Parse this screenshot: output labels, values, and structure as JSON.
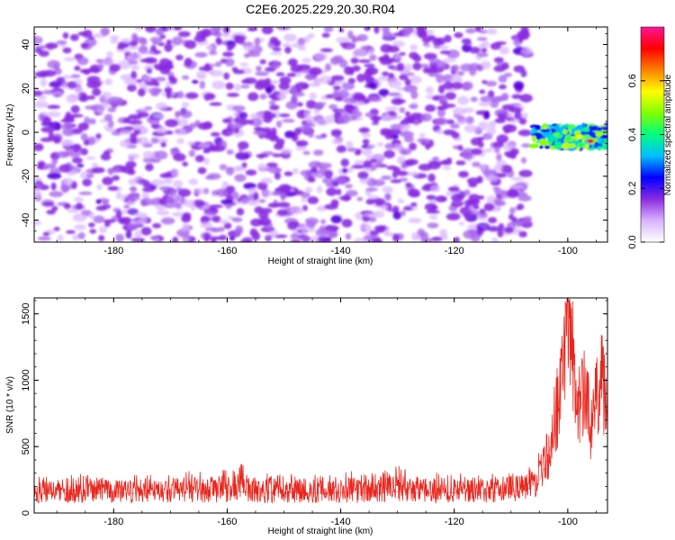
{
  "title": "C2E6.2025.229.20.30.R04",
  "chart_data": [
    {
      "type": "heatmap",
      "xlabel": "Height of straight line (km)",
      "ylabel": "Frequency (Hz)",
      "xlim": [
        -194,
        -93
      ],
      "ylim": [
        -50,
        48
      ],
      "x_ticks": [
        -180,
        -160,
        -140,
        -120,
        -100
      ],
      "y_ticks": [
        -40,
        -20,
        0,
        20,
        40
      ],
      "colorbar": {
        "label": "Normalized spectral amplitude",
        "range": [
          0,
          0.8
        ],
        "ticks": [
          0.0,
          0.2,
          0.4,
          0.6
        ],
        "colors": [
          "#ffffff",
          "#d9b3ff",
          "#8a2be2",
          "#0000ff",
          "#00bfff",
          "#00ff80",
          "#80ff00",
          "#ffff00",
          "#ff8000",
          "#ff0000",
          "#ff1493"
        ]
      },
      "noise_region": {
        "x_range": [
          -194,
          -107
        ],
        "amplitude_range": [
          0.0,
          0.15
        ],
        "dominant_color": "#8a2be2"
      },
      "signal_region": {
        "x_range": [
          -106,
          -93
        ],
        "frequency_center": -2,
        "frequency_halfwidth": 5,
        "amplitude_range": [
          0.2,
          0.75
        ]
      }
    },
    {
      "type": "line",
      "xlabel": "Height of straight line (km)",
      "ylabel": "SNR (10 * v/v)",
      "xlim": [
        -194,
        -93
      ],
      "ylim": [
        0,
        1620
      ],
      "x_ticks": [
        -180,
        -160,
        -140,
        -120,
        -100
      ],
      "y_ticks": [
        0,
        500,
        1000,
        1500
      ],
      "series": [
        {
          "color": "#e8261e",
          "x": [
            -194,
            -190,
            -186,
            -182,
            -178,
            -174,
            -170,
            -166,
            -162,
            -158,
            -154,
            -150,
            -146,
            -142,
            -138,
            -134,
            -130,
            -126,
            -122,
            -118,
            -114,
            -110,
            -107,
            -105,
            -104,
            -103,
            -102,
            -101,
            -100.5,
            -100,
            -99.5,
            -99,
            -98,
            -97,
            -96,
            -95,
            -94,
            -93
          ],
          "values": [
            140,
            150,
            145,
            155,
            150,
            145,
            150,
            155,
            150,
            160,
            150,
            155,
            150,
            150,
            155,
            150,
            160,
            150,
            155,
            150,
            150,
            155,
            180,
            250,
            350,
            500,
            700,
            1000,
            1300,
            1600,
            1450,
            1100,
            750,
            900,
            600,
            800,
            1000,
            700
          ],
          "band_low": [
            20,
            25,
            20,
            25,
            20,
            25,
            20,
            25,
            20,
            25,
            20,
            25,
            20,
            25,
            20,
            25,
            20,
            25,
            20,
            25,
            20,
            25,
            30,
            60,
            100,
            150,
            250,
            400,
            550,
            650,
            500,
            400,
            300,
            350,
            250,
            300,
            400,
            300
          ],
          "band_high": [
            270,
            280,
            300,
            310,
            280,
            300,
            290,
            330,
            300,
            380,
            310,
            320,
            300,
            290,
            320,
            300,
            360,
            300,
            320,
            300,
            290,
            330,
            340,
            480,
            640,
            800,
            1050,
            1400,
            1620,
            1620,
            1620,
            1450,
            1100,
            1350,
            900,
            1150,
            1380,
            1050
          ]
        }
      ]
    }
  ]
}
